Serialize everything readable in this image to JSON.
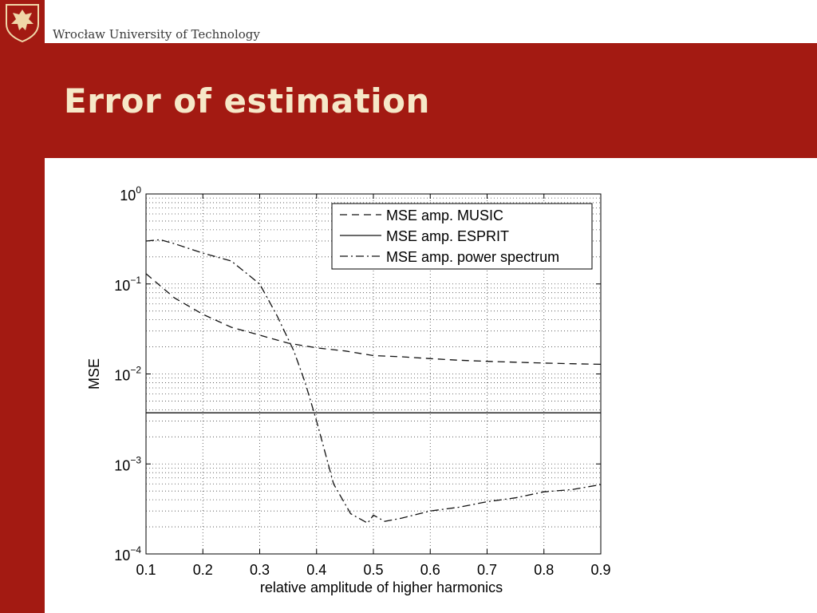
{
  "header": {
    "university": "Wrocław University of Technology",
    "logo_icon": "eagle-crest-icon",
    "brand_color": "#a31a12"
  },
  "slide": {
    "title": "Error of estimation"
  },
  "chart_data": {
    "type": "line",
    "xlabel": "relative amplitude of higher harmonics",
    "ylabel": "MSE",
    "xlim": [
      0.1,
      0.9
    ],
    "ylim": [
      0.0001,
      1
    ],
    "yscale": "log",
    "grid": true,
    "legend_position": "top-right",
    "x_ticks": [
      "0.1",
      "0.2",
      "0.3",
      "0.4",
      "0.5",
      "0.6",
      "0.7",
      "0.8",
      "0.9"
    ],
    "y_ticks": [
      {
        "base": "10",
        "exp": "0"
      },
      {
        "base": "10",
        "exp": "−1"
      },
      {
        "base": "10",
        "exp": "−2"
      },
      {
        "base": "10",
        "exp": "−3"
      },
      {
        "base": "10",
        "exp": "−4"
      }
    ],
    "series": [
      {
        "name": "MSE amp. MUSIC",
        "style": "dashed",
        "x": [
          0.1,
          0.15,
          0.2,
          0.25,
          0.3,
          0.35,
          0.4,
          0.45,
          0.5,
          0.55,
          0.6,
          0.65,
          0.7,
          0.75,
          0.8,
          0.85,
          0.9
        ],
        "y": [
          0.13,
          0.07,
          0.046,
          0.033,
          0.027,
          0.022,
          0.0195,
          0.018,
          0.016,
          0.0155,
          0.0148,
          0.0142,
          0.0138,
          0.0135,
          0.0132,
          0.013,
          0.0128
        ]
      },
      {
        "name": "MSE amp. ESPRIT",
        "style": "solid",
        "x": [
          0.1,
          0.3,
          0.5,
          0.7,
          0.9
        ],
        "y": [
          0.0037,
          0.0037,
          0.0037,
          0.0037,
          0.0037
        ]
      },
      {
        "name": "MSE amp. power spectrum",
        "style": "dashdot",
        "x": [
          0.1,
          0.125,
          0.15,
          0.2,
          0.25,
          0.3,
          0.33,
          0.36,
          0.38,
          0.4,
          0.43,
          0.46,
          0.49,
          0.5,
          0.52,
          0.55,
          0.6,
          0.65,
          0.7,
          0.75,
          0.8,
          0.85,
          0.9
        ],
        "y": [
          0.3,
          0.31,
          0.28,
          0.22,
          0.18,
          0.1,
          0.045,
          0.018,
          0.008,
          0.003,
          0.0006,
          0.00028,
          0.00022,
          0.00027,
          0.00023,
          0.00025,
          0.0003,
          0.00033,
          0.00038,
          0.00042,
          0.00049,
          0.00052,
          0.00059
        ]
      }
    ]
  }
}
